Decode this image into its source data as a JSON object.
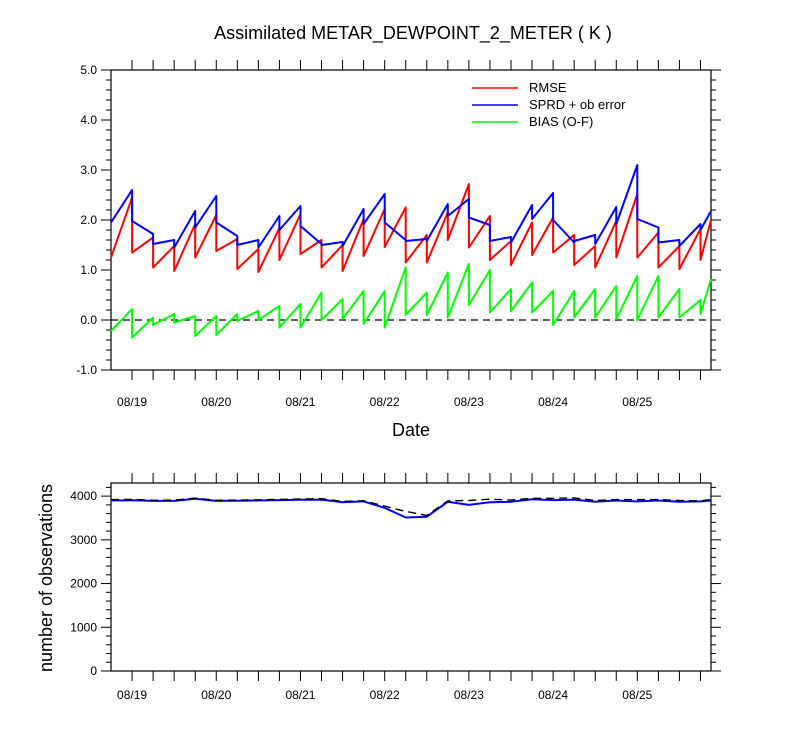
{
  "chart_data": [
    {
      "type": "line",
      "title": "Assimilated METAR_DEWPOINT_2_METER ( K )",
      "xlabel": "Date",
      "ylabel": "",
      "ylim": [
        -1.0,
        5.0
      ],
      "yticks": [
        "-1.0",
        "0.0",
        "1.0",
        "2.0",
        "3.0",
        "4.0",
        "5.0"
      ],
      "xlim_days": [
        18.75,
        25.875
      ],
      "xtick_labels": [
        "08/19",
        "08/20",
        "08/21",
        "08/22",
        "08/23",
        "08/24",
        "08/25"
      ],
      "reference_line": 0.0,
      "legend_position": "top-right",
      "series": [
        {
          "name": "RMSE",
          "color": "#ff0000",
          "x": [
            18.75,
            19.0,
            19.0,
            19.25,
            19.25,
            19.5,
            19.5,
            19.75,
            19.75,
            20.0,
            20.0,
            20.25,
            20.25,
            20.5,
            20.5,
            20.75,
            20.75,
            21.0,
            21.0,
            21.25,
            21.25,
            21.5,
            21.5,
            21.75,
            21.75,
            22.0,
            22.0,
            22.25,
            22.25,
            22.5,
            22.5,
            22.75,
            22.75,
            23.0,
            23.0,
            23.25,
            23.25,
            23.5,
            23.5,
            23.75,
            23.75,
            24.0,
            24.0,
            24.25,
            24.25,
            24.5,
            24.5,
            24.75,
            24.75,
            25.0,
            25.0,
            25.25,
            25.25,
            25.5,
            25.5,
            25.75,
            25.75,
            25.875
          ],
          "y": [
            1.25,
            2.45,
            1.35,
            1.65,
            1.05,
            1.48,
            0.98,
            1.92,
            1.25,
            2.1,
            1.38,
            1.62,
            1.02,
            1.42,
            0.96,
            1.84,
            1.2,
            2.12,
            1.32,
            1.6,
            1.05,
            1.5,
            0.98,
            2.02,
            1.28,
            2.22,
            1.46,
            2.25,
            1.15,
            1.7,
            1.15,
            2.15,
            1.6,
            2.72,
            1.45,
            2.08,
            1.2,
            1.58,
            1.1,
            1.95,
            1.3,
            2.05,
            1.35,
            1.7,
            1.1,
            1.48,
            1.05,
            1.98,
            1.25,
            2.52,
            1.25,
            1.75,
            1.05,
            1.48,
            1.02,
            1.82,
            1.2,
            2.0
          ]
        },
        {
          "name": "SPRD + ob error",
          "color": "#0000ff",
          "x": [
            18.75,
            19.0,
            19.0,
            19.25,
            19.25,
            19.5,
            19.5,
            19.75,
            19.75,
            20.0,
            20.0,
            20.25,
            20.25,
            20.5,
            20.5,
            20.75,
            20.75,
            21.0,
            21.0,
            21.25,
            21.25,
            21.5,
            21.5,
            21.75,
            21.75,
            22.0,
            22.0,
            22.25,
            22.25,
            22.5,
            22.5,
            22.75,
            22.75,
            23.0,
            23.0,
            23.25,
            23.25,
            23.5,
            23.5,
            23.75,
            23.75,
            24.0,
            24.0,
            24.25,
            24.25,
            24.5,
            24.5,
            24.75,
            24.75,
            25.0,
            25.0,
            25.25,
            25.25,
            25.5,
            25.5,
            25.75,
            25.75,
            25.875
          ],
          "y": [
            1.95,
            2.6,
            1.98,
            1.72,
            1.52,
            1.6,
            1.45,
            2.18,
            1.85,
            2.48,
            1.95,
            1.68,
            1.5,
            1.6,
            1.45,
            2.08,
            1.8,
            2.28,
            1.88,
            1.52,
            1.5,
            1.56,
            1.48,
            2.22,
            1.92,
            2.52,
            1.95,
            1.6,
            1.58,
            1.62,
            1.58,
            2.32,
            2.08,
            2.42,
            2.05,
            1.9,
            1.58,
            1.66,
            1.55,
            2.3,
            2.02,
            2.54,
            2.0,
            1.55,
            1.58,
            1.7,
            1.52,
            2.26,
            1.92,
            3.1,
            2.02,
            1.85,
            1.55,
            1.6,
            1.48,
            1.92,
            1.8,
            2.18
          ]
        },
        {
          "name": "BIAS (O-F)",
          "color": "#00ff00",
          "x": [
            18.75,
            19.0,
            19.0,
            19.25,
            19.25,
            19.5,
            19.5,
            19.75,
            19.75,
            20.0,
            20.0,
            20.25,
            20.25,
            20.5,
            20.5,
            20.75,
            20.75,
            21.0,
            21.0,
            21.25,
            21.25,
            21.5,
            21.5,
            21.75,
            21.75,
            22.0,
            22.0,
            22.25,
            22.25,
            22.5,
            22.5,
            22.75,
            22.75,
            23.0,
            23.0,
            23.25,
            23.25,
            23.5,
            23.5,
            23.75,
            23.75,
            24.0,
            24.0,
            24.25,
            24.25,
            24.5,
            24.5,
            24.75,
            24.75,
            25.0,
            25.0,
            25.25,
            25.25,
            25.5,
            25.5,
            25.75,
            25.75,
            25.875
          ],
          "y": [
            -0.22,
            0.22,
            -0.35,
            0.05,
            -0.1,
            0.12,
            -0.05,
            0.08,
            -0.32,
            0.08,
            -0.3,
            0.12,
            -0.02,
            0.18,
            0.0,
            0.28,
            -0.15,
            0.32,
            -0.15,
            0.55,
            0.0,
            0.42,
            0.02,
            0.58,
            -0.08,
            0.58,
            -0.15,
            1.05,
            0.1,
            0.55,
            0.1,
            0.95,
            0.05,
            1.12,
            0.3,
            1.0,
            0.15,
            0.62,
            0.18,
            0.75,
            0.15,
            0.58,
            -0.1,
            0.58,
            0.05,
            0.62,
            0.05,
            0.68,
            0.02,
            0.88,
            0.0,
            0.88,
            0.05,
            0.62,
            0.05,
            0.4,
            0.12,
            0.82
          ]
        }
      ]
    },
    {
      "type": "line",
      "title": "",
      "xlabel": "",
      "ylabel": "number of observations",
      "ylim": [
        0,
        4300
      ],
      "yticks": [
        "0",
        "1000",
        "2000",
        "3000",
        "4000"
      ],
      "xlim_days": [
        18.75,
        25.875
      ],
      "xtick_labels": [
        "08/19",
        "08/20",
        "08/21",
        "08/22",
        "08/23",
        "08/24",
        "08/25"
      ],
      "series": [
        {
          "name": "",
          "color": "#0000ff",
          "style": "solid",
          "x": [
            18.75,
            19.0,
            19.25,
            19.5,
            19.75,
            20.0,
            20.25,
            20.5,
            20.75,
            21.0,
            21.25,
            21.5,
            21.75,
            22.0,
            22.25,
            22.5,
            22.75,
            23.0,
            23.25,
            23.5,
            23.75,
            24.0,
            24.25,
            24.5,
            24.75,
            25.0,
            25.25,
            25.5,
            25.75,
            25.875
          ],
          "y": [
            3900,
            3905,
            3890,
            3890,
            3940,
            3890,
            3895,
            3900,
            3910,
            3915,
            3920,
            3860,
            3880,
            3730,
            3510,
            3530,
            3870,
            3800,
            3860,
            3870,
            3930,
            3910,
            3920,
            3870,
            3900,
            3880,
            3900,
            3870,
            3880,
            3900
          ]
        },
        {
          "name": "",
          "color": "#000000",
          "style": "dashed",
          "x": [
            18.75,
            19.0,
            19.25,
            19.5,
            19.75,
            20.0,
            20.25,
            20.5,
            20.75,
            21.0,
            21.25,
            21.5,
            21.75,
            22.0,
            22.25,
            22.5,
            22.75,
            23.0,
            23.25,
            23.5,
            23.75,
            24.0,
            24.25,
            24.5,
            24.75,
            25.0,
            25.25,
            25.5,
            25.75,
            25.875
          ],
          "y": [
            3920,
            3925,
            3905,
            3910,
            3955,
            3905,
            3910,
            3915,
            3925,
            3935,
            3940,
            3880,
            3895,
            3770,
            3650,
            3560,
            3890,
            3900,
            3930,
            3910,
            3950,
            3950,
            3960,
            3900,
            3920,
            3920,
            3920,
            3900,
            3890,
            3920
          ]
        }
      ]
    }
  ]
}
